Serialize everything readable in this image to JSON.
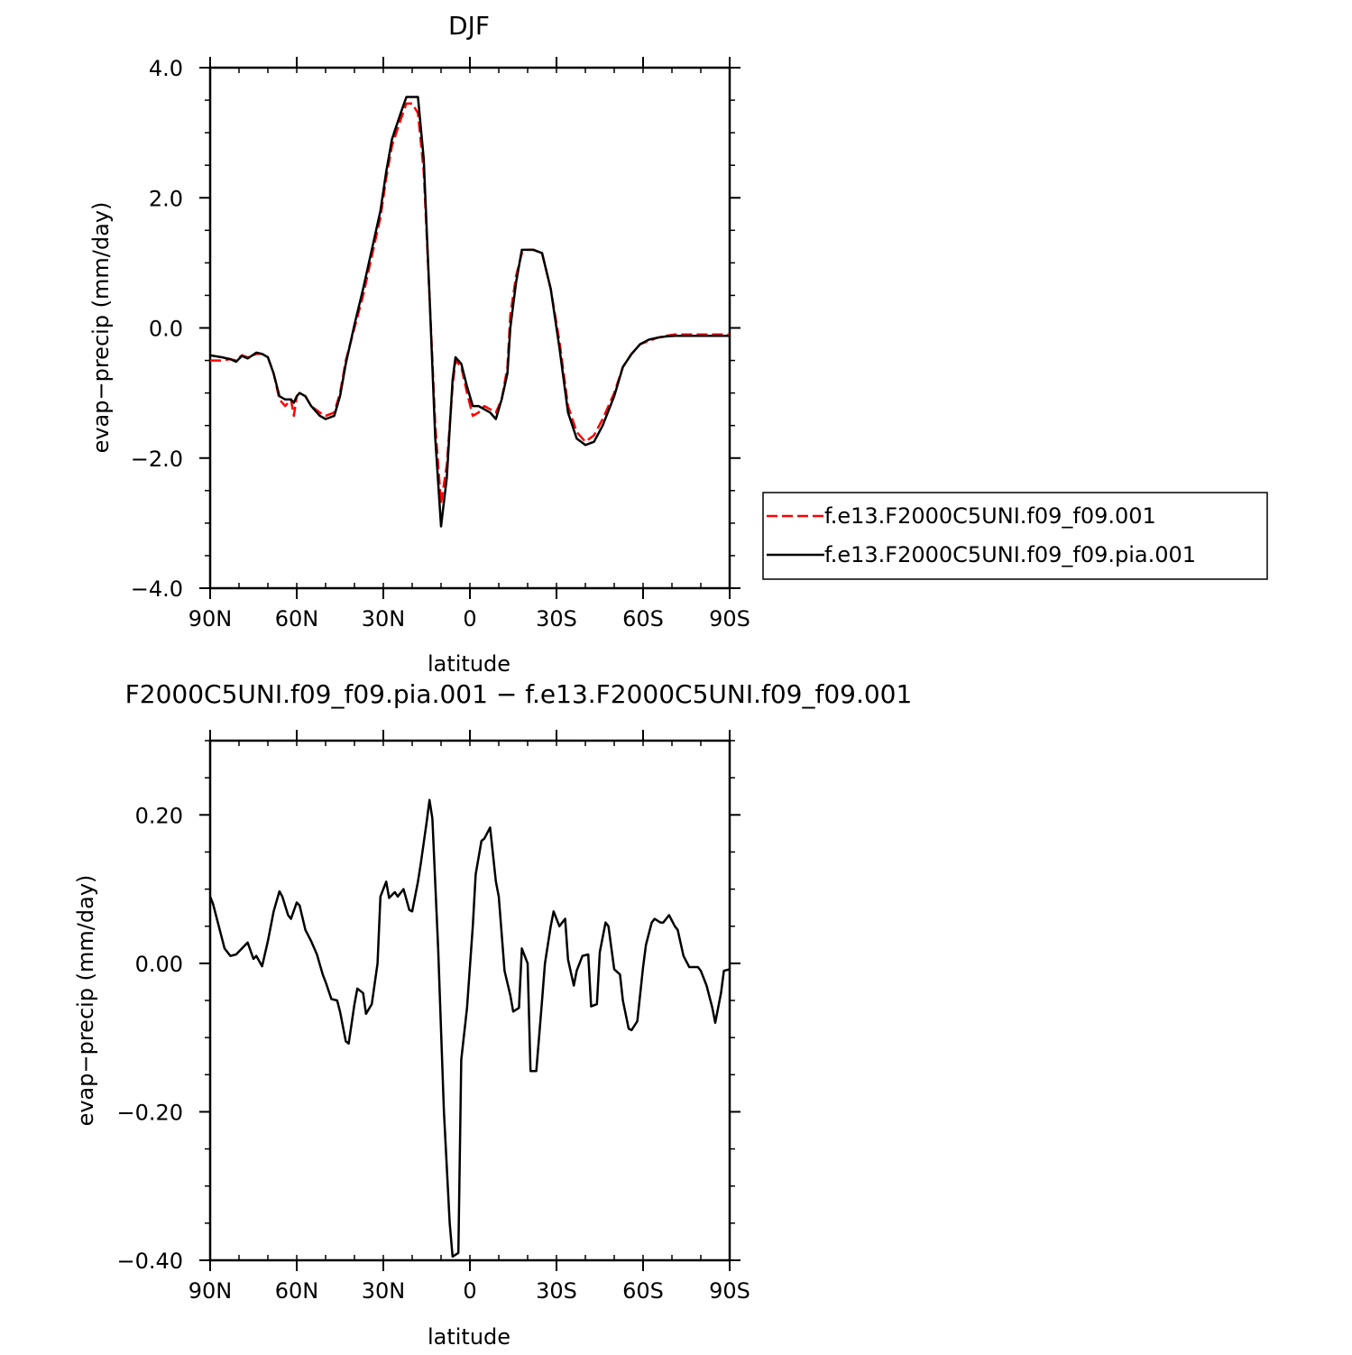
{
  "colors": {
    "model1": "#ff0000",
    "model2": "#000000",
    "axis": "#000000"
  },
  "chart_data": [
    {
      "type": "line",
      "title": "DJF",
      "xlabel": "latitude",
      "ylabel": "evap−precip (mm/day)",
      "xlim": [
        90,
        -90
      ],
      "ylim": [
        -4.0,
        4.0
      ],
      "xticks": [
        {
          "value": 90,
          "label": "90N"
        },
        {
          "value": 60,
          "label": "60N"
        },
        {
          "value": 30,
          "label": "30N"
        },
        {
          "value": 0,
          "label": "0"
        },
        {
          "value": -30,
          "label": "30S"
        },
        {
          "value": -60,
          "label": "60S"
        },
        {
          "value": -90,
          "label": "90S"
        }
      ],
      "yticks": [
        {
          "value": 4.0,
          "label": "4.0"
        },
        {
          "value": 2.0,
          "label": "2.0"
        },
        {
          "value": 0.0,
          "label": "0.0"
        },
        {
          "value": -2.0,
          "label": "−2.0"
        },
        {
          "value": -4.0,
          "label": "−4.0"
        }
      ],
      "legend": {
        "placement": "right",
        "entries": [
          {
            "label": "f.e13.F2000C5UNI.f09_f09.001",
            "color": "#ff0000",
            "dash": true
          },
          {
            "label": "f.e13.F2000C5UNI.f09_f09.pia.001",
            "color": "#000000",
            "dash": false
          }
        ]
      },
      "series": [
        {
          "name": "f.e13.F2000C5UNI.f09_f09.001",
          "color": "#ff0000",
          "dash": true,
          "x": [
            90,
            86,
            83,
            81,
            79,
            77,
            74,
            72,
            70,
            68,
            66,
            64,
            62,
            61,
            60,
            59,
            57,
            55,
            52,
            50,
            47,
            45,
            43,
            40,
            37,
            34,
            31,
            29,
            27,
            24,
            22,
            20,
            18,
            16,
            14,
            12,
            10,
            8,
            6,
            5,
            3,
            1,
            -1,
            -3,
            -5,
            -7,
            -9,
            -11,
            -13,
            -14,
            -16,
            -18,
            -20,
            -22,
            -25,
            -28,
            -31,
            -34,
            -37,
            -40,
            -43,
            -46,
            -50,
            -53,
            -56,
            -59,
            -62,
            -65,
            -68,
            -71,
            -74,
            -77,
            -80,
            -83,
            -86,
            -90
          ],
          "y": [
            -0.5,
            -0.5,
            -0.48,
            -0.5,
            -0.42,
            -0.45,
            -0.4,
            -0.4,
            -0.45,
            -0.7,
            -1.1,
            -1.2,
            -1.1,
            -1.35,
            -1.05,
            -1.0,
            -1.05,
            -1.2,
            -1.3,
            -1.35,
            -1.3,
            -1.0,
            -0.5,
            0.0,
            0.5,
            1.1,
            1.7,
            2.3,
            2.8,
            3.2,
            3.45,
            3.45,
            3.3,
            2.4,
            0.5,
            -1.5,
            -2.7,
            -2.1,
            -0.9,
            -0.5,
            -0.6,
            -1.0,
            -1.35,
            -1.3,
            -1.2,
            -1.25,
            -1.3,
            -1.1,
            -0.6,
            0.2,
            0.8,
            1.15,
            1.2,
            1.2,
            1.15,
            0.6,
            -0.2,
            -1.2,
            -1.6,
            -1.75,
            -1.65,
            -1.4,
            -1.0,
            -0.6,
            -0.4,
            -0.25,
            -0.2,
            -0.15,
            -0.12,
            -0.1,
            -0.1,
            -0.1,
            -0.1,
            -0.1,
            -0.1,
            -0.1
          ]
        },
        {
          "name": "f.e13.F2000C5UNI.f09_f09.pia.001",
          "color": "#000000",
          "dash": false,
          "x": [
            90,
            86,
            83,
            81,
            79,
            77,
            74,
            72,
            70,
            68,
            66,
            64,
            62,
            61,
            60,
            59,
            57,
            55,
            52,
            50,
            47,
            45,
            43,
            40,
            37,
            34,
            31,
            29,
            27,
            24,
            22,
            20,
            18,
            16,
            14,
            12,
            10,
            8,
            6,
            5,
            3,
            1,
            -1,
            -3,
            -5,
            -7,
            -9,
            -11,
            -13,
            -14,
            -16,
            -18,
            -20,
            -22,
            -25,
            -28,
            -31,
            -34,
            -37,
            -40,
            -43,
            -46,
            -50,
            -53,
            -56,
            -59,
            -62,
            -65,
            -68,
            -71,
            -74,
            -77,
            -80,
            -83,
            -86,
            -90
          ],
          "y": [
            -0.42,
            -0.45,
            -0.48,
            -0.52,
            -0.43,
            -0.47,
            -0.38,
            -0.4,
            -0.45,
            -0.7,
            -1.05,
            -1.1,
            -1.1,
            -1.15,
            -1.05,
            -1.0,
            -1.05,
            -1.2,
            -1.35,
            -1.4,
            -1.35,
            -1.05,
            -0.55,
            0.05,
            0.6,
            1.2,
            1.8,
            2.4,
            2.9,
            3.3,
            3.55,
            3.55,
            3.55,
            2.6,
            0.5,
            -1.7,
            -3.05,
            -2.3,
            -0.8,
            -0.45,
            -0.55,
            -0.9,
            -1.2,
            -1.2,
            -1.25,
            -1.3,
            -1.4,
            -1.1,
            -0.7,
            0.0,
            0.7,
            1.2,
            1.2,
            1.2,
            1.15,
            0.6,
            -0.3,
            -1.3,
            -1.7,
            -1.8,
            -1.75,
            -1.5,
            -1.05,
            -0.6,
            -0.4,
            -0.25,
            -0.18,
            -0.15,
            -0.13,
            -0.12,
            -0.12,
            -0.12,
            -0.12,
            -0.12,
            -0.12,
            -0.12
          ]
        }
      ]
    },
    {
      "type": "line",
      "title": "F2000C5UNI.f09_f09.pia.001 − f.e13.F2000C5UNI.f09_f09.001",
      "xlabel": "latitude",
      "ylabel": "evap−precip (mm/day)",
      "xlim": [
        90,
        -90
      ],
      "ylim": [
        -0.4,
        0.3
      ],
      "xticks": [
        {
          "value": 90,
          "label": "90N"
        },
        {
          "value": 60,
          "label": "60N"
        },
        {
          "value": 30,
          "label": "30N"
        },
        {
          "value": 0,
          "label": "0"
        },
        {
          "value": -30,
          "label": "30S"
        },
        {
          "value": -60,
          "label": "60S"
        },
        {
          "value": -90,
          "label": "90S"
        }
      ],
      "yticks": [
        {
          "value": 0.2,
          "label": "0.20"
        },
        {
          "value": 0.0,
          "label": "0.00"
        },
        {
          "value": -0.2,
          "label": "−0.20"
        },
        {
          "value": -0.4,
          "label": "−0.40"
        }
      ],
      "series": [
        {
          "color": "#000000",
          "dash": false,
          "x": [
            90,
            89,
            87,
            85,
            83,
            81,
            79,
            77,
            75,
            74,
            72,
            70,
            68,
            66,
            65,
            63,
            62,
            60,
            59,
            57,
            55,
            53,
            51,
            50,
            48,
            46,
            45,
            43,
            42,
            40,
            39,
            37,
            36,
            34,
            32,
            31,
            29,
            28,
            26,
            25,
            23,
            21,
            20,
            18,
            17,
            15,
            14,
            13,
            11,
            9,
            7,
            6,
            4,
            3,
            1,
            -1,
            -2,
            -4,
            -5,
            -7,
            -9,
            -10,
            -12,
            -14,
            -15,
            -17,
            -18,
            -20,
            -21,
            -23,
            -25,
            -26,
            -28,
            -29,
            -31,
            -33,
            -34,
            -36,
            -37,
            -39,
            -41,
            -42,
            -44,
            -45,
            -47,
            -48,
            -50,
            -52,
            -53,
            -55,
            -56,
            -58,
            -60,
            -61,
            -63,
            -64,
            -66,
            -67,
            -69,
            -71,
            -72,
            -74,
            -76,
            -77,
            -79,
            -80,
            -82,
            -84,
            -85,
            -87,
            -88,
            -90
          ],
          "y": [
            0.09,
            0.08,
            0.05,
            0.02,
            0.01,
            0.012,
            0.02,
            0.028,
            0.006,
            0.01,
            -0.004,
            0.03,
            0.07,
            0.097,
            0.09,
            0.065,
            0.06,
            0.082,
            0.078,
            0.045,
            0.03,
            0.012,
            -0.015,
            -0.025,
            -0.048,
            -0.05,
            -0.065,
            -0.105,
            -0.108,
            -0.055,
            -0.034,
            -0.04,
            -0.068,
            -0.055,
            0.0,
            0.09,
            0.11,
            0.088,
            0.096,
            0.09,
            0.1,
            0.072,
            0.07,
            0.11,
            0.135,
            0.19,
            0.22,
            0.195,
            0.02,
            -0.2,
            -0.35,
            -0.395,
            -0.39,
            -0.13,
            -0.06,
            0.05,
            0.12,
            0.165,
            0.168,
            0.183,
            0.11,
            0.09,
            -0.01,
            -0.043,
            -0.065,
            -0.06,
            0.02,
            0.0,
            -0.145,
            -0.145,
            -0.05,
            0.0,
            0.05,
            0.07,
            0.05,
            0.06,
            0.005,
            -0.03,
            -0.01,
            0.01,
            0.012,
            -0.058,
            -0.055,
            0.015,
            0.055,
            0.05,
            -0.008,
            -0.015,
            -0.05,
            -0.088,
            -0.09,
            -0.078,
            -0.005,
            0.025,
            0.055,
            0.06,
            0.055,
            0.055,
            0.065,
            0.05,
            0.045,
            0.01,
            -0.005,
            -0.005,
            -0.005,
            -0.01,
            -0.03,
            -0.06,
            -0.08,
            -0.04,
            -0.01,
            -0.008
          ]
        }
      ]
    }
  ]
}
